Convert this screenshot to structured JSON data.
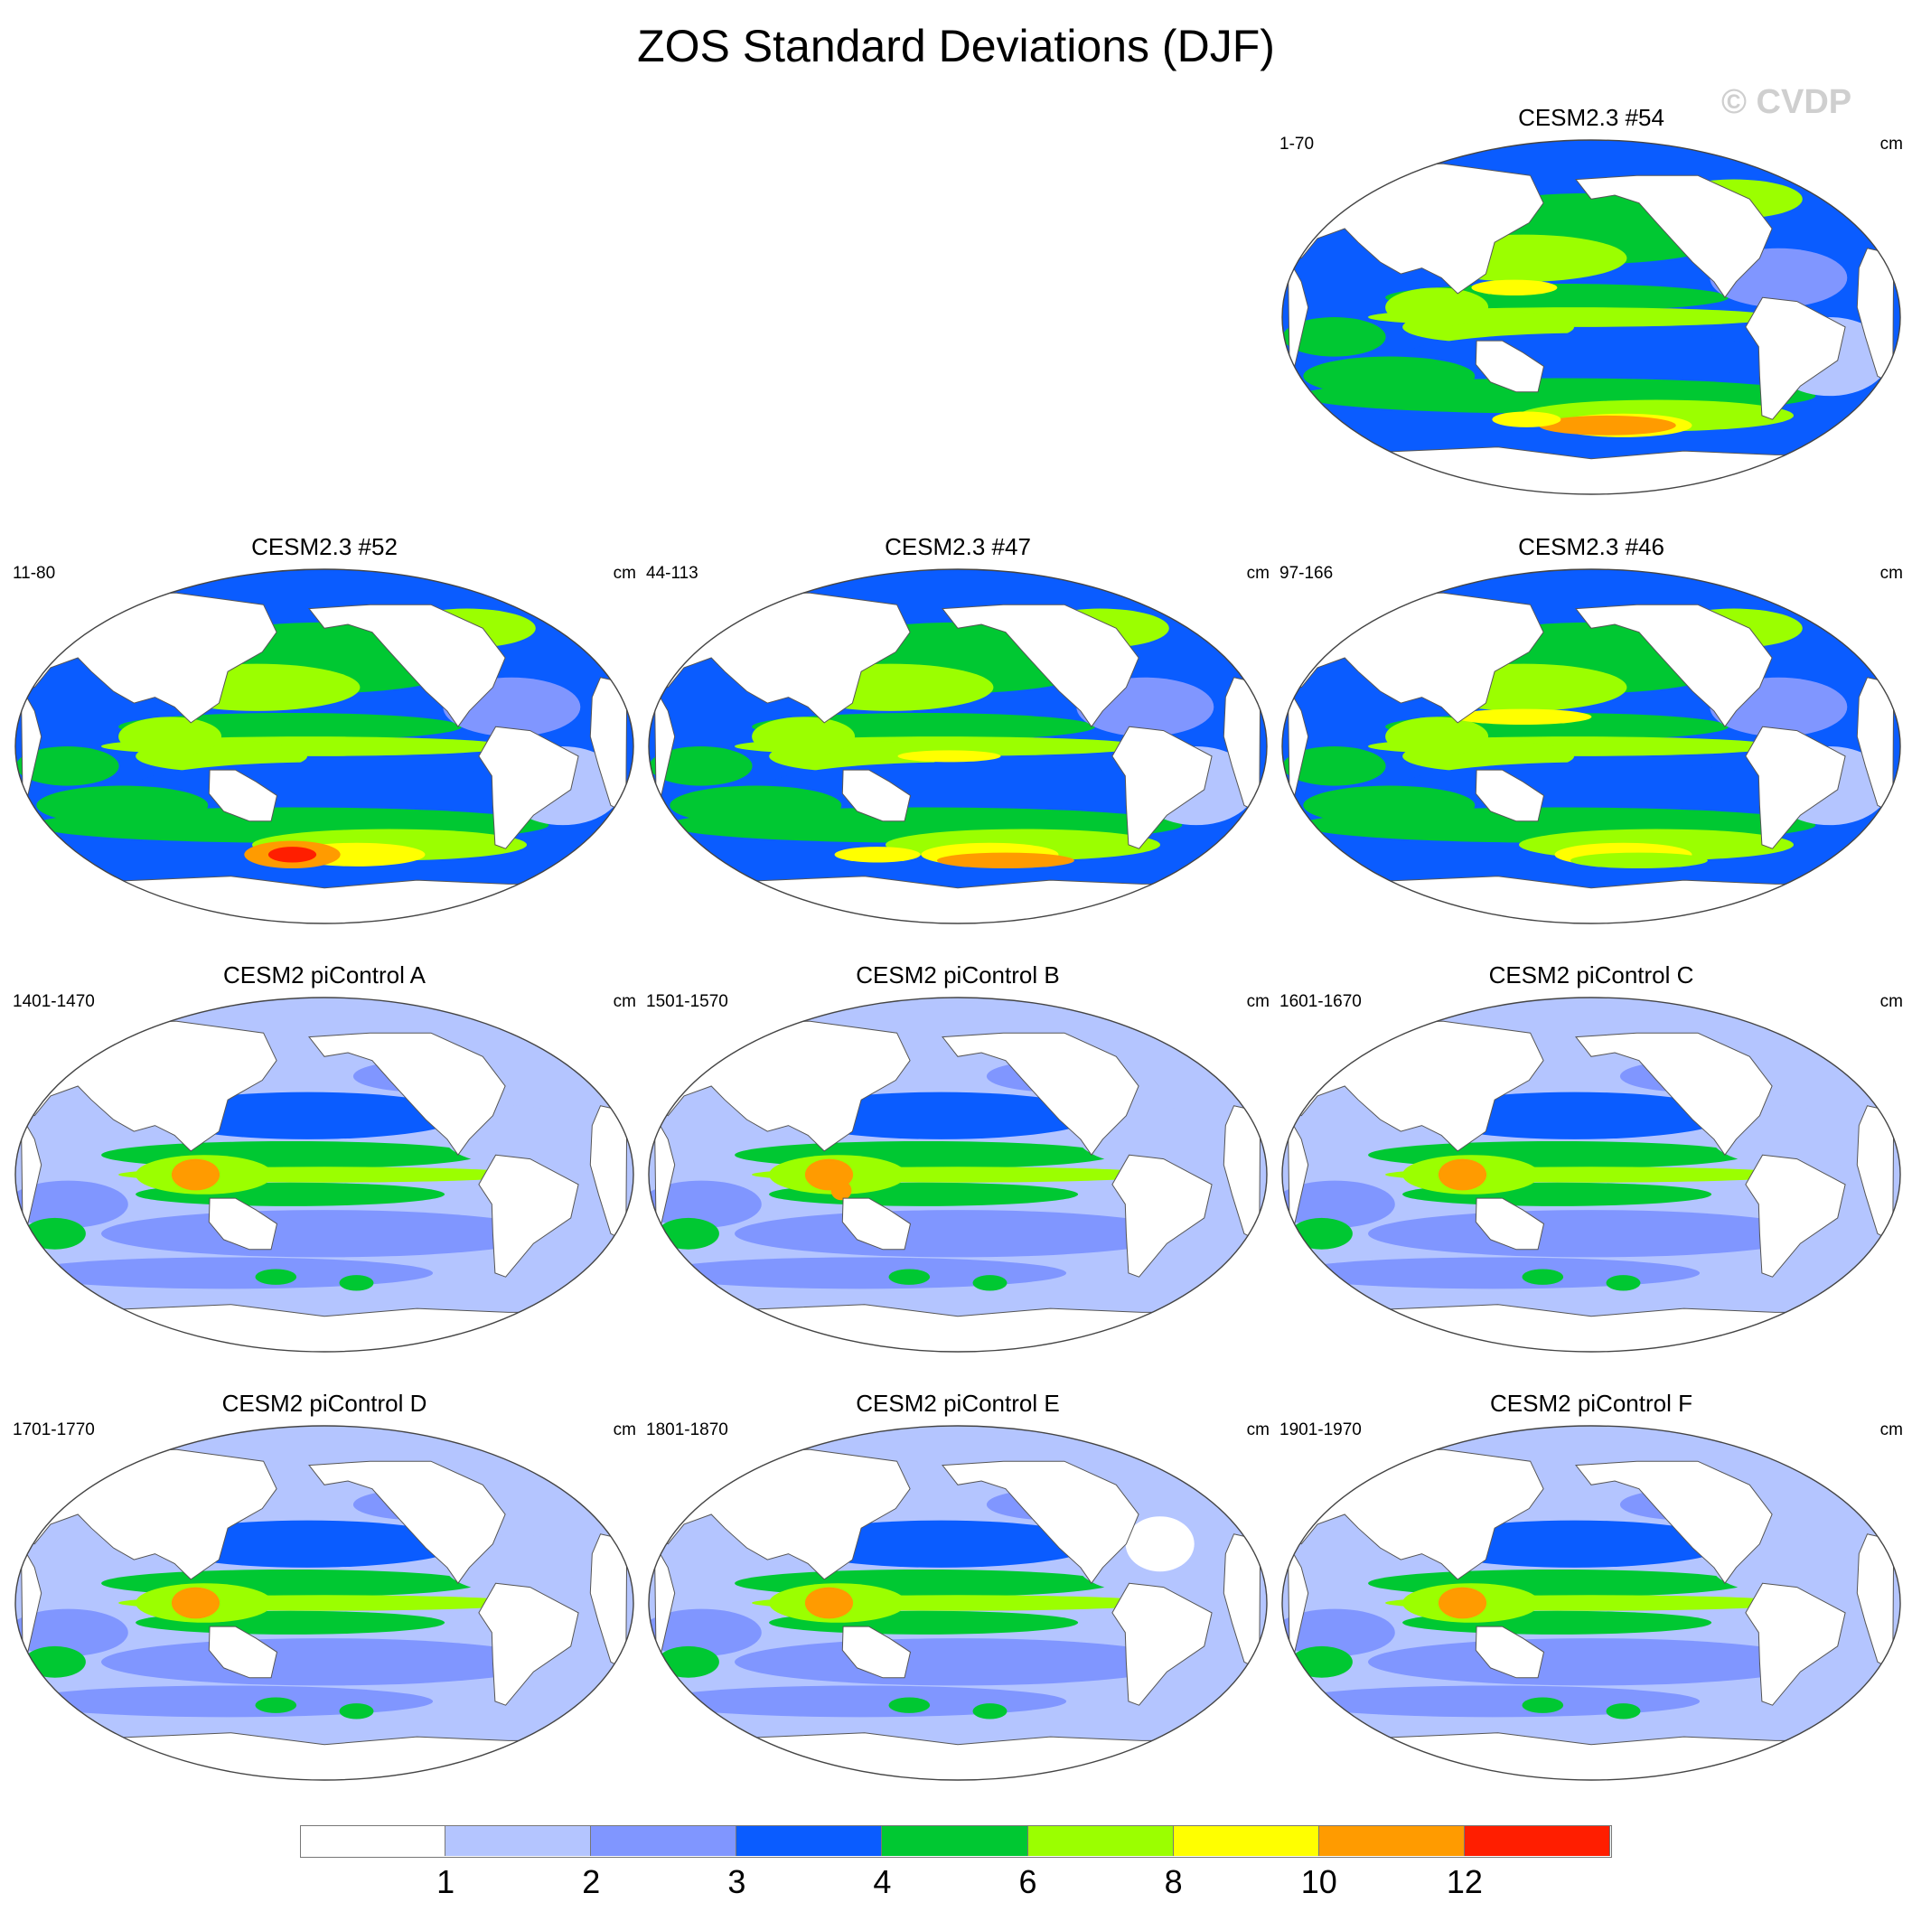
{
  "title": "ZOS Standard Deviations (DJF)",
  "watermark": "© CVDP",
  "panels": [
    {
      "title": "CESM2.3 #54",
      "years": "1-70",
      "units": "cm",
      "group": "cesm23"
    },
    {
      "title": "CESM2.3 #52",
      "years": "11-80",
      "units": "cm",
      "group": "cesm23"
    },
    {
      "title": "CESM2.3 #47",
      "years": "44-113",
      "units": "cm",
      "group": "cesm23"
    },
    {
      "title": "CESM2.3 #46",
      "years": "97-166",
      "units": "cm",
      "group": "cesm23"
    },
    {
      "title": "CESM2 piControl A",
      "years": "1401-1470",
      "units": "cm",
      "group": "picontrol"
    },
    {
      "title": "CESM2 piControl B",
      "years": "1501-1570",
      "units": "cm",
      "group": "picontrol"
    },
    {
      "title": "CESM2 piControl C",
      "years": "1601-1670",
      "units": "cm",
      "group": "picontrol"
    },
    {
      "title": "CESM2 piControl D",
      "years": "1701-1770",
      "units": "cm",
      "group": "picontrol"
    },
    {
      "title": "CESM2 piControl E",
      "years": "1801-1870",
      "units": "cm",
      "group": "picontrol"
    },
    {
      "title": "CESM2 piControl F",
      "years": "1901-1970",
      "units": "cm",
      "group": "picontrol"
    }
  ],
  "colorbar": {
    "labels": [
      "1",
      "2",
      "3",
      "4",
      "6",
      "8",
      "10",
      "12"
    ],
    "colors": [
      "#ffffff",
      "#b4c5ff",
      "#8096ff",
      "#0a5cff",
      "#00c832",
      "#9bff00",
      "#ffff00",
      "#ff9b00",
      "#ff1e00"
    ]
  }
}
